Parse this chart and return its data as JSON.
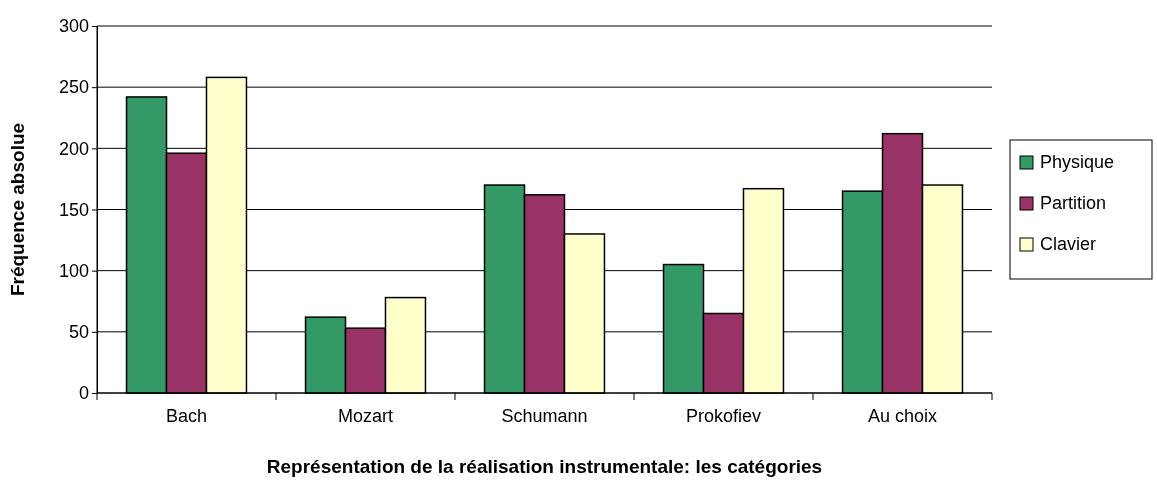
{
  "chart_data": {
    "type": "bar",
    "xlabel": "Représentation de la réalisation instrumentale: les catégories",
    "ylabel": "Fréquence absolue",
    "categories": [
      "Bach",
      "Mozart",
      "Schumann",
      "Prokofiev",
      "Au choix"
    ],
    "series": [
      {
        "name": "Physique",
        "color": "#339966",
        "values": [
          242,
          62,
          170,
          105,
          165
        ]
      },
      {
        "name": "Partition",
        "color": "#993366",
        "values": [
          196,
          53,
          162,
          65,
          212
        ]
      },
      {
        "name": "Clavier",
        "color": "#ffffcc",
        "values": [
          258,
          78,
          130,
          167,
          170
        ]
      }
    ],
    "ylim": [
      0,
      300
    ],
    "yticks": [
      0,
      50,
      100,
      150,
      200,
      250,
      300
    ],
    "grid": "y",
    "legend": "right"
  }
}
